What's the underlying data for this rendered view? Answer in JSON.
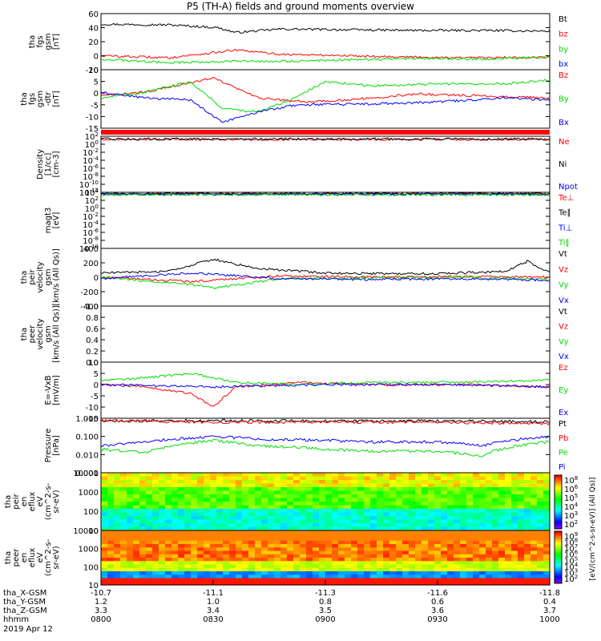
{
  "title": "P5 (TH-A) fields and ground moments overview",
  "colors": {
    "black": "#000000",
    "red": "#ff0000",
    "green": "#00dd00",
    "blue": "#0000ff"
  },
  "chart_data": [
    {
      "type": "line",
      "ylabel": [
        "tha",
        "fgs",
        "gsm",
        "[nT]"
      ],
      "yticks": [
        "60",
        "40",
        "20",
        "0",
        "-20"
      ],
      "ylim": [
        -20,
        60
      ],
      "series": [
        {
          "name": "Bt",
          "color": "black",
          "x": [
            0,
            0.15,
            0.26,
            0.3,
            0.4,
            0.55,
            0.7,
            0.85,
            1.0
          ],
          "y": [
            45,
            44,
            40,
            33,
            38,
            37,
            36,
            36,
            35
          ]
        },
        {
          "name": "bz",
          "color": "red",
          "x": [
            0,
            0.15,
            0.3,
            0.4,
            0.55,
            0.7,
            0.85,
            1.0
          ],
          "y": [
            0,
            -3,
            8,
            2,
            0,
            -2,
            -3,
            -2
          ]
        },
        {
          "name": "by",
          "color": "green",
          "x": [
            0,
            0.15,
            0.3,
            0.4,
            0.55,
            0.7,
            0.85,
            1.0
          ],
          "y": [
            -5,
            -10,
            -8,
            -8,
            -6,
            -4,
            -5,
            -2
          ]
        },
        {
          "name": "bx",
          "color": "blue",
          "x": [],
          "y": []
        }
      ]
    },
    {
      "type": "line",
      "ylabel": [
        "tha",
        "fgs",
        "gsm",
        "-dtr",
        "[nT]"
      ],
      "yticks": [
        "10",
        "5",
        "0",
        "-5",
        "-10",
        "-15"
      ],
      "ylim": [
        -18,
        11
      ],
      "series": [
        {
          "name": "Bz",
          "color": "red",
          "x": [
            0,
            0.1,
            0.25,
            0.35,
            0.45,
            0.55,
            0.7,
            0.85,
            1.0
          ],
          "y": [
            -2,
            0,
            7,
            -3,
            -5,
            -4,
            -1,
            -2,
            -3
          ]
        },
        {
          "name": "By",
          "color": "green",
          "x": [
            0,
            0.1,
            0.2,
            0.27,
            0.35,
            0.42,
            0.5,
            0.6,
            0.75,
            0.9,
            1.0
          ],
          "y": [
            -3,
            0,
            5,
            -8,
            -10,
            -4,
            5,
            3,
            4,
            4,
            6
          ]
        },
        {
          "name": "Bx",
          "color": "blue",
          "x": [
            0,
            0.1,
            0.2,
            0.27,
            0.35,
            0.42,
            0.5,
            0.6,
            0.75,
            0.9,
            1.0
          ],
          "y": [
            0,
            -3,
            -4,
            -15,
            -10,
            -7,
            -6,
            -6,
            -5,
            -3,
            -4
          ]
        }
      ]
    },
    {
      "type": "line",
      "ylabel": [
        "Density",
        "[1/cc]",
        "[cm-3]"
      ],
      "yticks": [
        "10^2",
        "10^0",
        "10^-2",
        "10^-4",
        "10^-6",
        "10^-8",
        "10^-10",
        "10^-12"
      ],
      "ylim": [
        -12,
        2
      ],
      "series": [
        {
          "name": "Ne",
          "color": "red",
          "x": [
            0,
            0.5,
            1.0
          ],
          "y": [
            1.2,
            1.2,
            1.2
          ]
        },
        {
          "name": "Ni",
          "color": "black",
          "x": [
            0,
            0.5,
            1.0
          ],
          "y": [
            1.3,
            1.3,
            1.3
          ]
        },
        {
          "name": "Npot",
          "color": "blue",
          "x": [],
          "y": []
        }
      ]
    },
    {
      "type": "line",
      "ylabel": [
        "magt3",
        "[eV]"
      ],
      "yticks": [
        "10^4",
        "10^2",
        "10^0",
        "10^-2",
        "10^-4",
        "10^-6",
        "10^-8",
        "10^-10"
      ],
      "ylim": [
        -10,
        4
      ],
      "series": [
        {
          "name": "Te⊥",
          "color": "red",
          "x": [
            0,
            1.0
          ],
          "y": [
            3.6,
            3.6
          ]
        },
        {
          "name": "Te∥",
          "color": "black",
          "x": [
            0,
            1.0
          ],
          "y": [
            3.7,
            3.7
          ]
        },
        {
          "name": "Ti⊥",
          "color": "blue",
          "x": [
            0,
            1.0
          ],
          "y": [
            3.5,
            3.5
          ]
        },
        {
          "name": "Ti∥",
          "color": "green",
          "x": [
            0,
            1.0
          ],
          "y": [
            3.4,
            3.4
          ]
        }
      ]
    },
    {
      "type": "line",
      "ylabel": [
        "tha",
        "peir",
        "velocity",
        "gsm",
        "[km/s (All Qs)]"
      ],
      "yticks": [
        "400",
        "200",
        "0",
        "-200",
        "-400"
      ],
      "ylim": [
        -400,
        400
      ],
      "series": [
        {
          "name": "Vt",
          "color": "black",
          "x": [
            0,
            0.15,
            0.25,
            0.35,
            0.5,
            0.6,
            0.75,
            0.9,
            0.95,
            1.0
          ],
          "y": [
            60,
            80,
            250,
            120,
            60,
            50,
            50,
            80,
            220,
            60
          ]
        },
        {
          "name": "Vz",
          "color": "red",
          "x": [
            0,
            0.2,
            0.4,
            0.6,
            0.8,
            1.0
          ],
          "y": [
            0,
            -60,
            20,
            0,
            10,
            0
          ]
        },
        {
          "name": "Vy",
          "color": "green",
          "x": [
            0,
            0.2,
            0.25,
            0.4,
            0.6,
            0.8,
            1.0
          ],
          "y": [
            0,
            -100,
            -150,
            -20,
            -10,
            0,
            -30
          ]
        },
        {
          "name": "Vx",
          "color": "blue",
          "x": [
            0,
            0.2,
            0.4,
            0.6,
            0.8,
            1.0
          ],
          "y": [
            -20,
            60,
            -20,
            -30,
            -20,
            -40
          ]
        }
      ]
    },
    {
      "type": "line",
      "ylabel": [
        "tha",
        "peer",
        "velocity",
        "gsm",
        "[km/s (All Qs)]"
      ],
      "yticks": [
        "1.0",
        "0.8",
        "0.6",
        "0.4",
        "0.2",
        "0.0"
      ],
      "ylim": [
        0,
        1
      ],
      "series": [
        {
          "name": "Vt",
          "color": "black",
          "x": [],
          "y": []
        },
        {
          "name": "Vz",
          "color": "red",
          "x": [],
          "y": []
        },
        {
          "name": "Vy",
          "color": "green",
          "x": [],
          "y": []
        },
        {
          "name": "Vx",
          "color": "blue",
          "x": [],
          "y": []
        }
      ]
    },
    {
      "type": "line",
      "ylabel": [
        "E=-VxB",
        "[mV/m]"
      ],
      "yticks": [
        "10",
        "5",
        "0",
        "-5",
        "-10",
        "-15"
      ],
      "ylim": [
        -15,
        10
      ],
      "series": [
        {
          "name": "Ez",
          "color": "red",
          "x": [
            0,
            0.1,
            0.2,
            0.25,
            0.3,
            0.45,
            0.6,
            0.8,
            1.0
          ],
          "y": [
            0,
            -1,
            -4,
            -10,
            -1,
            1,
            0,
            0,
            -1
          ]
        },
        {
          "name": "Ey",
          "color": "green",
          "x": [
            0,
            0.1,
            0.2,
            0.3,
            0.45,
            0.6,
            0.8,
            1.0
          ],
          "y": [
            2,
            3,
            5,
            1,
            0,
            1,
            1,
            2
          ]
        },
        {
          "name": "Ex",
          "color": "blue",
          "x": [
            0,
            0.25,
            0.5,
            0.75,
            1.0
          ],
          "y": [
            0,
            -1,
            0,
            0,
            -1
          ]
        }
      ]
    },
    {
      "type": "line",
      "ylabel": [
        "Pressure",
        "[nPa]"
      ],
      "yticks": [
        "1.000",
        "0.100",
        "0.010",
        "0.001"
      ],
      "ylim": [
        0.001,
        1
      ],
      "log": true,
      "series": [
        {
          "name": "Pt",
          "color": "black",
          "x": [
            0,
            0.25,
            0.5,
            0.75,
            1.0
          ],
          "y": [
            0.7,
            0.75,
            0.7,
            0.7,
            0.65
          ]
        },
        {
          "name": "Pb",
          "color": "red",
          "x": [
            0,
            0.25,
            0.5,
            0.75,
            1.0
          ],
          "y": [
            0.75,
            0.6,
            0.6,
            0.6,
            0.5
          ]
        },
        {
          "name": "Pe",
          "color": "green",
          "x": [
            0,
            0.1,
            0.25,
            0.35,
            0.5,
            0.6,
            0.75,
            0.85,
            1.0
          ],
          "y": [
            0.02,
            0.012,
            0.06,
            0.03,
            0.02,
            0.015,
            0.015,
            0.008,
            0.05
          ]
        },
        {
          "name": "Pi",
          "color": "blue",
          "x": [
            0,
            0.1,
            0.25,
            0.35,
            0.5,
            0.6,
            0.75,
            0.85,
            1.0
          ],
          "y": [
            0.03,
            0.05,
            0.1,
            0.07,
            0.06,
            0.05,
            0.05,
            0.03,
            0.1
          ]
        }
      ]
    },
    {
      "type": "heatmap",
      "ylabel": [
        "tha",
        "peir",
        "en",
        "eflux",
        "eV",
        "(cm^2-s-",
        "sr-eV)"
      ],
      "yticks": [
        "10000",
        "1000",
        "100",
        "10"
      ],
      "ylim": [
        10,
        20000
      ]
    },
    {
      "type": "heatmap",
      "ylabel": [
        "tha",
        "peer",
        "en",
        "eflux",
        "eV",
        "(cm^2-s-",
        "sr-eV)"
      ],
      "yticks": [
        "10000",
        "1000",
        "100",
        "10"
      ],
      "ylim": [
        10,
        20000
      ]
    }
  ],
  "colorbar1": {
    "ticks": [
      "10^8",
      "10^6",
      "10^5",
      "10^4",
      "10^3",
      "10^2"
    ]
  },
  "colorbar2": {
    "ticks": [
      "10^9",
      "10^8",
      "10^7",
      "10^6",
      "10^5",
      "10^4",
      "10^3",
      "10^2"
    ]
  },
  "colorbar_label": "[eV/(cm^2-s-sr-eV)] (All Qs)]",
  "xaxis": {
    "ticks": [
      {
        "row1": "-10.7",
        "row2": "1.2",
        "row3": "3.3",
        "row4": "0800"
      },
      {
        "row1": "-11.1",
        "row2": "1.0",
        "row3": "3.4",
        "row4": "0830"
      },
      {
        "row1": "-11.3",
        "row2": "0.8",
        "row3": "3.5",
        "row4": "0900"
      },
      {
        "row1": "-11.6",
        "row2": "0.6",
        "row3": "3.6",
        "row4": "0930"
      },
      {
        "row1": "-11.8",
        "row2": "0.4",
        "row3": "3.7",
        "row4": "1000"
      }
    ],
    "row_labels": [
      "tha_X-GSM",
      "tha_Y-GSM",
      "tha_Z-GSM",
      "hhmm"
    ],
    "date": "2019 Apr 12"
  }
}
